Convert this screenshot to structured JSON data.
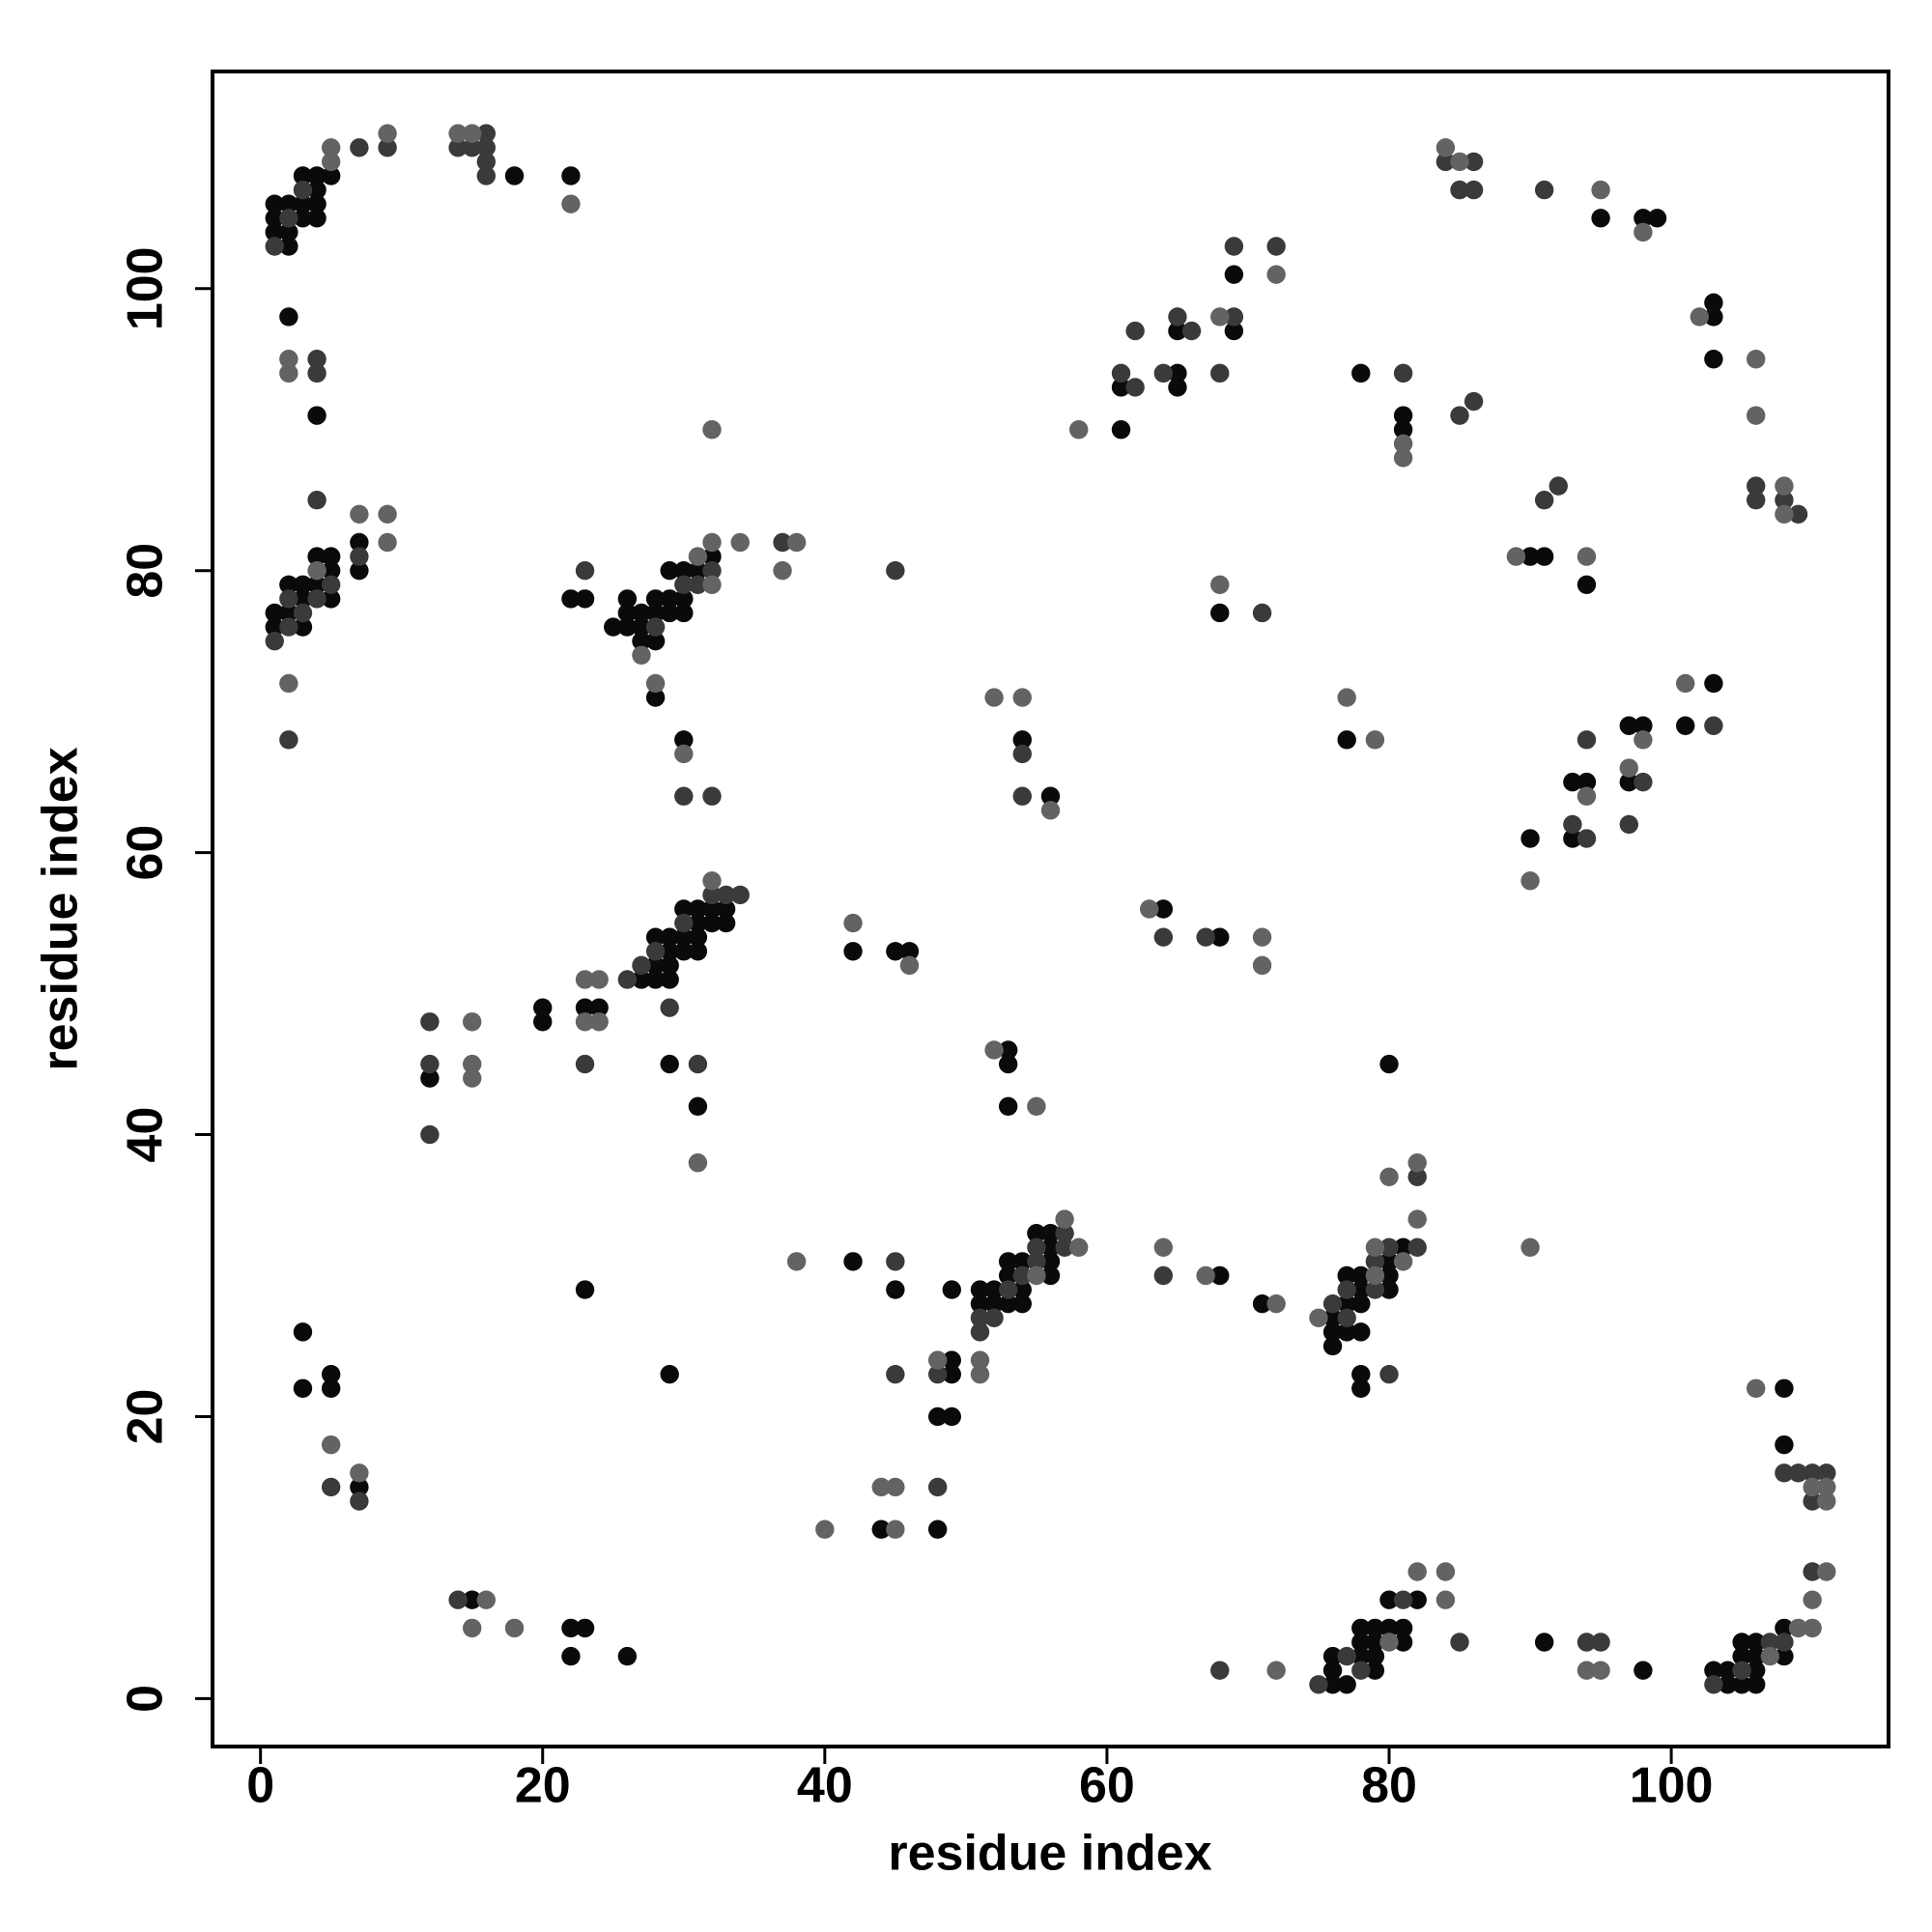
{
  "chart_data": {
    "type": "scatter",
    "x_label": "residue index",
    "y_label": "residue index",
    "xlim": [
      -3.4,
      115.4
    ],
    "ylim": [
      -3.4,
      115.4
    ],
    "xticks": [
      0,
      20,
      40,
      60,
      80,
      100
    ],
    "yticks": [
      0,
      20,
      40,
      60,
      80,
      100
    ],
    "series": [
      {
        "color": "#0a0a0a",
        "x": [
          1,
          1,
          1,
          2,
          2,
          2,
          3,
          3,
          3,
          4,
          4,
          4,
          4,
          5,
          18,
          22,
          2,
          4,
          1,
          1,
          2,
          2,
          3,
          3,
          3,
          4,
          4,
          5,
          5,
          5,
          7,
          7,
          22,
          23,
          25,
          26,
          26,
          26,
          27,
          27,
          27,
          28,
          28,
          28,
          28,
          29,
          29,
          29,
          30,
          30,
          30,
          31,
          32,
          30,
          12,
          20,
          20,
          23,
          24,
          27,
          28,
          28,
          28,
          29,
          29,
          29,
          29,
          29,
          30,
          30,
          30,
          31,
          31,
          31,
          31,
          31,
          32,
          32,
          33,
          33,
          42,
          45,
          46,
          54,
          56,
          53,
          53,
          53,
          42,
          45,
          23,
          29,
          49,
          49,
          49,
          48,
          49,
          51,
          51,
          52,
          52,
          53,
          53,
          53,
          54,
          54,
          54,
          55,
          56,
          56,
          56,
          56,
          68,
          71,
          76,
          76,
          76,
          77,
          77,
          77,
          78,
          78,
          78,
          78,
          78,
          78,
          80,
          80,
          80,
          80,
          81,
          3,
          3,
          5,
          5,
          7,
          15,
          22,
          23,
          22,
          26,
          44,
          48,
          76,
          76,
          76,
          77,
          78,
          78,
          78,
          79,
          79,
          79,
          79,
          80,
          80,
          81,
          81,
          82,
          91,
          98,
          103,
          104,
          104,
          105,
          105,
          105,
          106,
          106,
          106,
          106,
          108,
          108,
          108,
          108,
          77,
          64,
          68,
          91,
          90,
          94,
          68,
          90,
          93,
          93,
          94,
          97,
          97,
          98,
          101,
          103,
          61,
          61,
          65,
          65,
          65,
          69,
          69,
          78,
          81,
          81,
          95,
          98,
          99,
          103,
          103,
          103
        ],
        "y": [
          106,
          105,
          104,
          106,
          104,
          103,
          106,
          105,
          108,
          108,
          107,
          106,
          105,
          108,
          108,
          108,
          98,
          91,
          77,
          76,
          79,
          77,
          79,
          78,
          76,
          81,
          79,
          81,
          80,
          78,
          82,
          80,
          78,
          78,
          76,
          77,
          76,
          78,
          77,
          76,
          75,
          78,
          77,
          75,
          71,
          80,
          78,
          77,
          80,
          78,
          77,
          80,
          81,
          68,
          44,
          49,
          48,
          49,
          49,
          51,
          54,
          52,
          51,
          54,
          53,
          52,
          51,
          45,
          56,
          54,
          53,
          56,
          55,
          54,
          53,
          42,
          56,
          55,
          56,
          55,
          53,
          53,
          53,
          68,
          64,
          46,
          45,
          42,
          31,
          29,
          29,
          23,
          29,
          24,
          23,
          20,
          20,
          29,
          28,
          29,
          28,
          31,
          30,
          28,
          31,
          29,
          28,
          33,
          33,
          32,
          31,
          30,
          30,
          28,
          27,
          26,
          25,
          30,
          28,
          26,
          30,
          29,
          28,
          26,
          23,
          22,
          31,
          30,
          29,
          45,
          32,
          26,
          22,
          23,
          22,
          15,
          7,
          5,
          5,
          3,
          3,
          12,
          12,
          3,
          2,
          1,
          1,
          5,
          4,
          3,
          5,
          4,
          3,
          2,
          7,
          5,
          5,
          4,
          7,
          4,
          2,
          2,
          2,
          1,
          4,
          3,
          1,
          4,
          3,
          2,
          1,
          5,
          3,
          22,
          18,
          68,
          56,
          54,
          81,
          81,
          79,
          77,
          61,
          65,
          61,
          65,
          69,
          65,
          69,
          69,
          72,
          93,
          90,
          97,
          94,
          93,
          101,
          97,
          94,
          91,
          90,
          105,
          105,
          105,
          99,
          98,
          95
        ]
      },
      {
        "color": "#3a3a3a",
        "x": [
          1,
          2,
          3,
          7,
          9,
          4,
          4,
          14,
          15,
          16,
          16,
          16,
          16,
          1,
          2,
          2,
          2,
          3,
          4,
          4,
          5,
          7,
          23,
          28,
          30,
          31,
          32,
          37,
          45,
          30,
          32,
          12,
          12,
          12,
          23,
          26,
          27,
          28,
          29,
          30,
          31,
          32,
          33,
          34,
          54,
          54,
          45,
          45,
          48,
          51,
          51,
          52,
          53,
          54,
          55,
          55,
          57,
          57,
          64,
          76,
          77,
          77,
          79,
          79,
          80,
          80,
          82,
          82,
          5,
          7,
          14,
          48,
          68,
          75,
          77,
          78,
          81,
          85,
          94,
          95,
          103,
          105,
          107,
          108,
          110,
          108,
          109,
          110,
          110,
          111,
          64,
          67,
          91,
          92,
          71,
          93,
          94,
          94,
          97,
          98,
          103,
          61,
          62,
          62,
          64,
          65,
          66,
          68,
          69,
          69,
          72,
          81,
          85,
          86,
          84,
          85,
          86,
          86,
          91,
          106,
          106,
          108,
          109
        ],
        "y": [
          103,
          105,
          107,
          110,
          110,
          95,
          94,
          110,
          110,
          111,
          110,
          109,
          108,
          75,
          78,
          76,
          68,
          77,
          85,
          78,
          79,
          81,
          80,
          76,
          79,
          79,
          80,
          82,
          80,
          64,
          64,
          48,
          45,
          40,
          45,
          51,
          52,
          53,
          49,
          55,
          45,
          57,
          57,
          57,
          67,
          64,
          31,
          23,
          23,
          27,
          26,
          27,
          29,
          30,
          32,
          31,
          33,
          32,
          30,
          28,
          29,
          27,
          31,
          29,
          32,
          23,
          37,
          32,
          15,
          14,
          7,
          15,
          2,
          1,
          3,
          2,
          7,
          4,
          4,
          4,
          1,
          2,
          4,
          4,
          9,
          16,
          16,
          16,
          14,
          16,
          54,
          54,
          85,
          86,
          77,
          62,
          68,
          61,
          62,
          65,
          69,
          94,
          97,
          93,
          94,
          98,
          97,
          94,
          103,
          98,
          103,
          94,
          91,
          92,
          109,
          107,
          109,
          107,
          107,
          86,
          85,
          85,
          84
        ]
      },
      {
        "color": "#636363",
        "x": [
          5,
          5,
          9,
          2,
          2,
          14,
          15,
          22,
          2,
          4,
          7,
          9,
          9,
          27,
          28,
          31,
          32,
          32,
          32,
          34,
          37,
          38,
          30,
          15,
          15,
          15,
          23,
          23,
          24,
          24,
          31,
          32,
          42,
          46,
          52,
          54,
          56,
          52,
          55,
          38,
          48,
          51,
          51,
          55,
          57,
          58,
          64,
          67,
          72,
          75,
          79,
          79,
          80,
          81,
          82,
          82,
          90,
          5,
          7,
          16,
          15,
          18,
          40,
          44,
          45,
          45,
          72,
          80,
          82,
          84,
          84,
          94,
          95,
          107,
          109,
          110,
          110,
          111,
          106,
          110,
          111,
          111,
          77,
          79,
          63,
          71,
          71,
          89,
          94,
          68,
          90,
          94,
          97,
          98,
          101,
          58,
          68,
          72,
          81,
          81,
          84,
          85,
          95,
          98,
          102,
          106,
          106,
          108,
          108
        ],
        "y": [
          109,
          110,
          111,
          95,
          94,
          111,
          111,
          106,
          72,
          80,
          84,
          84,
          82,
          74,
          72,
          81,
          82,
          79,
          90,
          82,
          80,
          82,
          67,
          48,
          45,
          44,
          51,
          48,
          51,
          48,
          38,
          58,
          55,
          52,
          71,
          71,
          63,
          46,
          42,
          31,
          24,
          24,
          23,
          30,
          34,
          32,
          32,
          30,
          28,
          27,
          32,
          30,
          37,
          31,
          38,
          34,
          32,
          18,
          16,
          7,
          5,
          5,
          12,
          15,
          15,
          12,
          2,
          4,
          9,
          9,
          7,
          2,
          2,
          3,
          5,
          5,
          7,
          9,
          22,
          15,
          15,
          14,
          71,
          68,
          56,
          54,
          52,
          81,
          81,
          79,
          58,
          64,
          66,
          68,
          72,
          90,
          98,
          101,
          89,
          88,
          110,
          109,
          107,
          104,
          98,
          95,
          91,
          86,
          84
        ]
      }
    ]
  }
}
